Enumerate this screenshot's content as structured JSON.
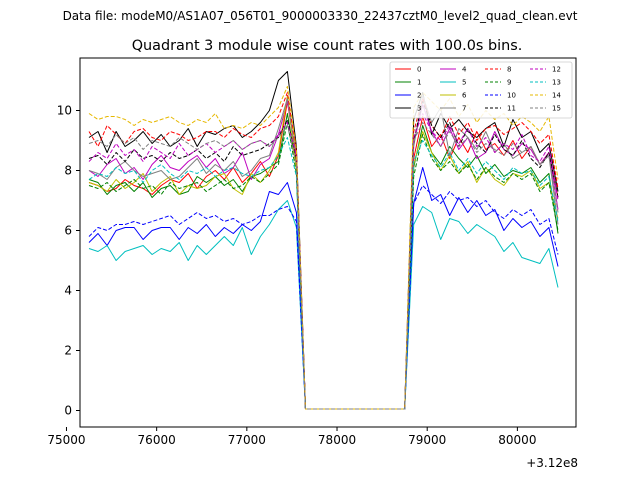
{
  "header_text": "Data file: modeM0/AS1A07_056T01_9000003330_22437cztM0_level2_quad_clean.evt",
  "chart_data": {
    "type": "line",
    "title": "Quadrant 3 module wise count rates with 100.0s bins.",
    "xlabel": "",
    "ylabel": "",
    "x_offset_label": "+3.12e8",
    "xlim": [
      75150,
      80650
    ],
    "ylim": [
      -0.55,
      11.75
    ],
    "x_ticks": [
      75000,
      76000,
      77000,
      78000,
      79000,
      80000
    ],
    "x_tick_labels": [
      "75000",
      "76000",
      "77000",
      "78000",
      "79000",
      "80000"
    ],
    "y_ticks": [
      0,
      2,
      4,
      6,
      8,
      10
    ],
    "y_tick_labels": [
      "0",
      "2",
      "4",
      "6",
      "8",
      "10"
    ],
    "grid": false,
    "legend_position": "top-right",
    "legend_columns": 4,
    "x": [
      75250,
      75350,
      75450,
      75550,
      75650,
      75750,
      75850,
      75950,
      76050,
      76150,
      76250,
      76350,
      76450,
      76550,
      76650,
      76750,
      76850,
      76950,
      77050,
      77150,
      77250,
      77350,
      77450,
      77550,
      77650,
      77750,
      77850,
      77950,
      78050,
      78150,
      78250,
      78350,
      78450,
      78550,
      78650,
      78750,
      78850,
      78950,
      79050,
      79150,
      79250,
      79350,
      79450,
      79550,
      79650,
      79750,
      79850,
      79950,
      80050,
      80150,
      80250,
      80350,
      80450
    ],
    "series": [
      {
        "name": "0",
        "color": "#ff0000",
        "dash": "solid",
        "values": [
          7.6,
          7.5,
          7.3,
          7.4,
          7.7,
          7.5,
          7.4,
          7.2,
          7.5,
          7.7,
          7.6,
          7.9,
          7.4,
          7.8,
          8.0,
          7.7,
          8.1,
          7.6,
          7.9,
          8.3,
          7.8,
          8.5,
          10.3,
          8.3,
          0.05,
          0.05,
          0.05,
          0.05,
          0.05,
          0.05,
          0.05,
          0.05,
          0.05,
          0.05,
          0.05,
          0.05,
          8.4,
          9.8,
          8.8,
          9.2,
          8.4,
          9.1,
          8.6,
          9.3,
          8.7,
          8.9,
          8.5,
          9.0,
          8.4,
          8.8,
          8.2,
          8.6,
          7.1
        ]
      },
      {
        "name": "1",
        "color": "#008000",
        "dash": "solid",
        "values": [
          7.7,
          7.6,
          7.2,
          7.5,
          7.6,
          7.3,
          7.6,
          7.1,
          7.4,
          7.5,
          7.2,
          7.3,
          7.8,
          7.6,
          7.8,
          7.5,
          7.7,
          7.3,
          7.8,
          7.9,
          8.1,
          8.3,
          9.9,
          8.1,
          0.05,
          0.05,
          0.05,
          0.05,
          0.05,
          0.05,
          0.05,
          0.05,
          0.05,
          0.05,
          0.05,
          0.05,
          8.1,
          9.5,
          8.6,
          8.2,
          8.8,
          8.4,
          8.1,
          8.5,
          7.9,
          8.2,
          7.8,
          8.0,
          7.9,
          8.1,
          7.6,
          7.9,
          5.9
        ]
      },
      {
        "name": "2",
        "color": "#0000ff",
        "dash": "solid",
        "values": [
          5.6,
          5.9,
          5.5,
          6.0,
          6.1,
          6.1,
          5.7,
          6.0,
          6.1,
          6.1,
          5.7,
          6.1,
          5.9,
          6.2,
          5.8,
          6.1,
          5.9,
          6.2,
          6.0,
          6.3,
          7.3,
          7.2,
          7.6,
          6.6,
          0.05,
          0.05,
          0.05,
          0.05,
          0.05,
          0.05,
          0.05,
          0.05,
          0.05,
          0.05,
          0.05,
          0.05,
          6.9,
          8.1,
          7.0,
          7.2,
          6.5,
          7.1,
          6.6,
          7.0,
          6.5,
          6.7,
          6.0,
          6.4,
          6.1,
          6.3,
          5.8,
          6.1,
          4.8
        ]
      },
      {
        "name": "3",
        "color": "#000000",
        "dash": "solid",
        "values": [
          9.1,
          9.3,
          8.6,
          9.3,
          8.8,
          9.0,
          9.3,
          8.9,
          9.2,
          8.8,
          9.0,
          9.4,
          8.8,
          9.3,
          9.2,
          9.4,
          9.5,
          9.1,
          9.3,
          9.6,
          10.0,
          11.0,
          11.3,
          8.8,
          0.05,
          0.05,
          0.05,
          0.05,
          0.05,
          0.05,
          0.05,
          0.05,
          0.05,
          0.05,
          0.05,
          0.05,
          9.7,
          10.6,
          9.2,
          9.9,
          9.4,
          9.7,
          9.3,
          9.1,
          9.4,
          9.6,
          8.8,
          9.7,
          9.1,
          9.3,
          8.6,
          8.9,
          7.3
        ]
      },
      {
        "name": "4",
        "color": "#bf00bf",
        "dash": "solid",
        "values": [
          8.0,
          7.8,
          8.2,
          8.4,
          7.9,
          8.1,
          7.7,
          8.2,
          8.5,
          8.1,
          8.0,
          8.3,
          8.5,
          8.1,
          8.4,
          7.9,
          8.1,
          8.6,
          7.7,
          8.2,
          8.4,
          9.2,
          10.3,
          8.5,
          0.05,
          0.05,
          0.05,
          0.05,
          0.05,
          0.05,
          0.05,
          0.05,
          0.05,
          0.05,
          0.05,
          0.05,
          8.9,
          10.2,
          9.3,
          8.8,
          9.4,
          8.7,
          9.1,
          8.4,
          8.6,
          9.3,
          8.7,
          8.5,
          8.9,
          8.7,
          8.2,
          8.6,
          6.7
        ]
      },
      {
        "name": "5",
        "color": "#00bfbf",
        "dash": "solid",
        "values": [
          5.4,
          5.3,
          5.5,
          5.0,
          5.3,
          5.4,
          5.5,
          5.2,
          5.4,
          5.3,
          5.6,
          5.0,
          5.5,
          5.2,
          5.5,
          5.8,
          5.5,
          6.1,
          5.2,
          5.8,
          6.2,
          6.7,
          7.0,
          6.1,
          0.05,
          0.05,
          0.05,
          0.05,
          0.05,
          0.05,
          0.05,
          0.05,
          0.05,
          0.05,
          0.05,
          0.05,
          6.2,
          6.8,
          6.6,
          5.7,
          6.4,
          6.3,
          5.9,
          6.2,
          6.0,
          5.8,
          5.3,
          5.6,
          5.1,
          5.0,
          4.9,
          5.4,
          4.1
        ]
      },
      {
        "name": "6",
        "color": "#bfbf00",
        "dash": "solid",
        "values": [
          7.6,
          7.5,
          7.3,
          7.7,
          7.4,
          7.6,
          7.9,
          7.3,
          7.6,
          7.8,
          7.2,
          7.5,
          7.4,
          7.5,
          7.8,
          7.9,
          7.4,
          7.2,
          7.9,
          7.6,
          8.0,
          8.6,
          10.5,
          8.0,
          0.05,
          0.05,
          0.05,
          0.05,
          0.05,
          0.05,
          0.05,
          0.05,
          0.05,
          0.05,
          0.05,
          0.05,
          8.2,
          9.3,
          8.6,
          8.0,
          8.5,
          7.9,
          8.3,
          7.6,
          8.1,
          7.7,
          7.5,
          7.9,
          7.8,
          8.0,
          7.4,
          7.6,
          6.4
        ]
      },
      {
        "name": "7",
        "color": "#808080",
        "dash": "solid",
        "values": [
          8.0,
          7.9,
          7.7,
          8.1,
          8.3,
          8.0,
          7.8,
          7.9,
          8.0,
          7.7,
          7.8,
          8.1,
          8.4,
          7.9,
          8.2,
          8.0,
          8.3,
          7.8,
          8.0,
          8.4,
          8.5,
          9.4,
          10.4,
          8.4,
          0.05,
          0.05,
          0.05,
          0.05,
          0.05,
          0.05,
          0.05,
          0.05,
          0.05,
          0.05,
          0.05,
          0.05,
          8.8,
          10.5,
          9.6,
          10.1,
          8.5,
          9.4,
          9.1,
          8.7,
          9.3,
          8.6,
          8.9,
          8.4,
          8.6,
          8.8,
          8.2,
          8.5,
          6.2
        ]
      },
      {
        "name": "8",
        "color": "#ff0000",
        "dash": "dashed",
        "values": [
          9.3,
          8.8,
          9.5,
          9.2,
          8.9,
          9.3,
          9.4,
          9.1,
          9.0,
          9.3,
          9.2,
          9.0,
          9.1,
          9.3,
          9.3,
          9.1,
          9.4,
          9.2,
          9.1,
          9.4,
          9.5,
          9.8,
          10.6,
          8.6,
          0.05,
          0.05,
          0.05,
          0.05,
          0.05,
          0.05,
          0.05,
          0.05,
          0.05,
          0.05,
          0.05,
          0.05,
          9.3,
          10.4,
          9.5,
          9.1,
          9.8,
          9.2,
          9.6,
          9.0,
          9.4,
          9.5,
          9.2,
          9.4,
          9.6,
          9.3,
          8.9,
          9.2,
          7.4
        ]
      },
      {
        "name": "9",
        "color": "#008000",
        "dash": "dashed",
        "values": [
          7.5,
          7.4,
          7.6,
          7.3,
          7.5,
          7.7,
          7.4,
          7.5,
          7.2,
          7.6,
          7.4,
          7.5,
          7.6,
          7.3,
          7.5,
          7.7,
          7.4,
          7.5,
          7.8,
          7.6,
          7.9,
          8.2,
          9.6,
          7.9,
          0.05,
          0.05,
          0.05,
          0.05,
          0.05,
          0.05,
          0.05,
          0.05,
          0.05,
          0.05,
          0.05,
          0.05,
          7.8,
          9.2,
          8.4,
          8.0,
          8.3,
          7.9,
          8.2,
          7.7,
          8.1,
          7.8,
          7.6,
          7.9,
          7.7,
          7.9,
          7.3,
          7.6,
          6.0
        ]
      },
      {
        "name": "10",
        "color": "#0000ff",
        "dash": "dashed",
        "values": [
          5.8,
          6.1,
          6.0,
          6.2,
          6.2,
          6.3,
          6.2,
          6.3,
          6.4,
          6.5,
          6.2,
          6.4,
          6.6,
          6.4,
          6.5,
          6.3,
          6.4,
          6.2,
          6.3,
          6.5,
          6.5,
          6.7,
          6.8,
          6.3,
          0.05,
          0.05,
          0.05,
          0.05,
          0.05,
          0.05,
          0.05,
          0.05,
          0.05,
          0.05,
          0.05,
          0.05,
          6.9,
          7.5,
          7.2,
          6.9,
          7.3,
          7.0,
          7.1,
          6.8,
          7.0,
          6.6,
          6.4,
          6.7,
          6.5,
          6.7,
          6.2,
          6.4,
          5.2
        ]
      },
      {
        "name": "11",
        "color": "#000000",
        "dash": "dashed",
        "values": [
          8.4,
          8.5,
          8.2,
          8.6,
          8.3,
          8.7,
          8.4,
          8.5,
          8.3,
          8.6,
          8.4,
          8.5,
          8.7,
          8.4,
          8.6,
          8.3,
          8.8,
          8.5,
          8.6,
          8.7,
          8.9,
          9.1,
          9.7,
          8.4,
          0.05,
          0.05,
          0.05,
          0.05,
          0.05,
          0.05,
          0.05,
          0.05,
          0.05,
          0.05,
          0.05,
          0.05,
          9.0,
          10.3,
          9.5,
          9.1,
          9.6,
          8.8,
          9.4,
          8.9,
          8.6,
          9.2,
          8.7,
          8.5,
          9.0,
          8.4,
          8.1,
          8.6,
          7.1
        ]
      },
      {
        "name": "12",
        "color": "#bf00bf",
        "dash": "dashed",
        "values": [
          8.3,
          8.6,
          8.4,
          8.9,
          8.5,
          8.7,
          8.3,
          8.8,
          8.6,
          8.4,
          8.9,
          8.5,
          8.7,
          8.9,
          8.6,
          8.8,
          9.0,
          8.7,
          8.9,
          9.0,
          8.8,
          9.2,
          9.6,
          8.5,
          0.05,
          0.05,
          0.05,
          0.05,
          0.05,
          0.05,
          0.05,
          0.05,
          0.05,
          0.05,
          0.05,
          0.05,
          9.1,
          9.9,
          9.3,
          9.0,
          9.5,
          8.9,
          9.4,
          8.8,
          9.1,
          8.6,
          8.9,
          8.7,
          9.2,
          8.5,
          8.3,
          8.8,
          7.0
        ]
      },
      {
        "name": "13",
        "color": "#00bfbf",
        "dash": "dashed",
        "values": [
          7.7,
          7.9,
          7.8,
          8.1,
          7.9,
          8.0,
          7.6,
          8.0,
          8.2,
          7.9,
          7.7,
          8.0,
          7.9,
          8.1,
          7.8,
          8.0,
          8.1,
          7.9,
          7.8,
          8.0,
          8.1,
          8.5,
          9.1,
          7.8,
          0.05,
          0.05,
          0.05,
          0.05,
          0.05,
          0.05,
          0.05,
          0.05,
          0.05,
          0.05,
          0.05,
          0.05,
          8.3,
          9.0,
          8.5,
          8.1,
          8.6,
          8.0,
          8.4,
          7.9,
          8.3,
          8.0,
          7.7,
          8.1,
          7.9,
          8.0,
          7.5,
          7.8,
          6.3
        ]
      },
      {
        "name": "14",
        "color": "#e6b800",
        "dash": "dashed",
        "values": [
          9.9,
          9.7,
          9.8,
          9.8,
          9.7,
          9.5,
          9.7,
          9.6,
          9.7,
          9.8,
          9.6,
          9.5,
          9.7,
          9.6,
          9.9,
          9.4,
          9.5,
          9.4,
          9.6,
          9.5,
          9.8,
          10.1,
          10.8,
          8.7,
          0.05,
          0.05,
          0.05,
          0.05,
          0.05,
          0.05,
          0.05,
          0.05,
          0.05,
          0.05,
          0.05,
          0.05,
          10.1,
          10.6,
          10.3,
          10.0,
          10.4,
          9.8,
          10.2,
          9.6,
          10.0,
          9.7,
          9.9,
          9.5,
          9.8,
          9.6,
          9.3,
          9.8,
          7.7
        ]
      },
      {
        "name": "15",
        "color": "#808080",
        "dash": "dashed",
        "values": [
          8.9,
          9.0,
          8.8,
          9.2,
          8.9,
          9.1,
          8.7,
          9.0,
          8.9,
          8.8,
          9.1,
          8.9,
          8.7,
          8.9,
          9.0,
          8.8,
          9.0,
          8.7,
          8.9,
          9.0,
          8.8,
          9.1,
          9.5,
          8.2,
          0.05,
          0.05,
          0.05,
          0.05,
          0.05,
          0.05,
          0.05,
          0.05,
          0.05,
          0.05,
          0.05,
          0.05,
          9.0,
          9.6,
          9.2,
          8.8,
          9.3,
          8.8,
          9.1,
          8.6,
          8.9,
          8.7,
          8.5,
          8.9,
          8.6,
          8.8,
          8.2,
          8.5,
          6.6
        ]
      }
    ]
  }
}
